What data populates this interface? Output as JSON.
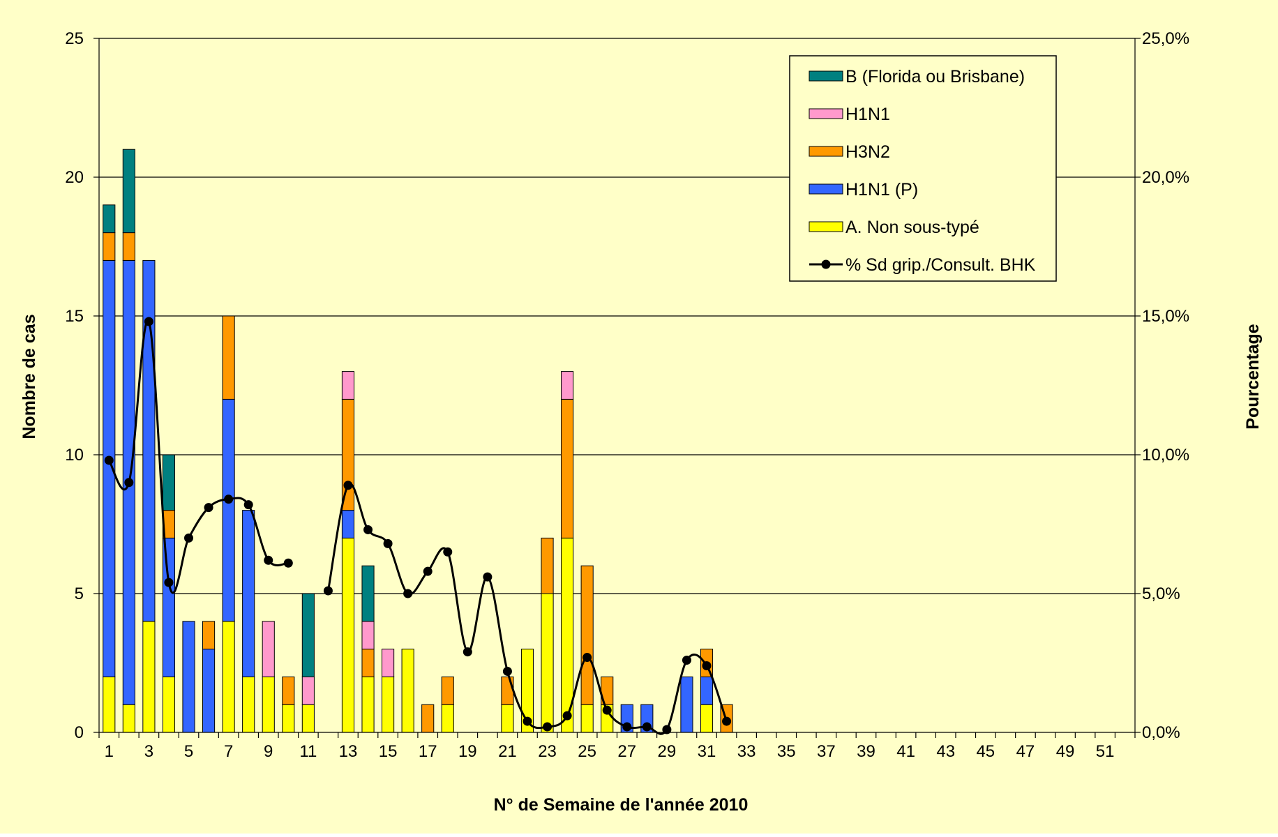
{
  "chart_data": {
    "type": "bar",
    "stacked": true,
    "title": "",
    "xlabel": "N° de Semaine de l'année 2010",
    "ylabel": "Nombre de cas",
    "y2label": "Pourcentage",
    "ylim": [
      0,
      25
    ],
    "y2lim": [
      0,
      25
    ],
    "yticks": [
      "0",
      "5",
      "10",
      "15",
      "20",
      "25"
    ],
    "y2ticks": [
      "0,0%",
      "5,0%",
      "10,0%",
      "15,0%",
      "20,0%",
      "25,0%"
    ],
    "grid": true,
    "legend_position": "top-right",
    "categories": [
      1,
      2,
      3,
      4,
      5,
      6,
      7,
      8,
      9,
      10,
      11,
      12,
      13,
      14,
      15,
      16,
      17,
      18,
      19,
      20,
      21,
      22,
      23,
      24,
      25,
      26,
      27,
      28,
      29,
      30,
      31,
      32,
      33,
      34,
      35,
      36,
      37,
      38,
      39,
      40,
      41,
      42,
      43,
      44,
      45,
      46,
      47,
      48,
      49,
      50,
      51,
      52
    ],
    "xtick_labels": [
      "1",
      "3",
      "5",
      "7",
      "9",
      "11",
      "13",
      "15",
      "17",
      "19",
      "21",
      "23",
      "25",
      "27",
      "29",
      "31",
      "33",
      "35",
      "37",
      "39",
      "41",
      "43",
      "45",
      "47",
      "49",
      "51"
    ],
    "series": [
      {
        "name": "A. Non sous-typé",
        "color": "#ffff00",
        "values": [
          2,
          1,
          4,
          2,
          0,
          0,
          4,
          2,
          2,
          1,
          1,
          0,
          7,
          2,
          2,
          3,
          0,
          1,
          0,
          0,
          1,
          3,
          5,
          7,
          1,
          1,
          0,
          0,
          0,
          0,
          1,
          0,
          0,
          0,
          0,
          0,
          0,
          0,
          0,
          0,
          0,
          0,
          0,
          0,
          0,
          0,
          0,
          0,
          0,
          0,
          0,
          0
        ]
      },
      {
        "name": "H1N1 (P)",
        "color": "#3366ff",
        "values": [
          15,
          16,
          13,
          5,
          4,
          3,
          8,
          6,
          0,
          0,
          0,
          0,
          1,
          0,
          0,
          0,
          0,
          0,
          0,
          0,
          0,
          0,
          0,
          0,
          0,
          0,
          1,
          1,
          0,
          2,
          1,
          0,
          0,
          0,
          0,
          0,
          0,
          0,
          0,
          0,
          0,
          0,
          0,
          0,
          0,
          0,
          0,
          0,
          0,
          0,
          0,
          0
        ]
      },
      {
        "name": "H3N2",
        "color": "#ff9900",
        "values": [
          1,
          1,
          0,
          1,
          0,
          1,
          3,
          0,
          0,
          1,
          0,
          0,
          4,
          1,
          0,
          0,
          1,
          1,
          0,
          0,
          1,
          0,
          2,
          5,
          5,
          1,
          0,
          0,
          0,
          0,
          1,
          1,
          0,
          0,
          0,
          0,
          0,
          0,
          0,
          0,
          0,
          0,
          0,
          0,
          0,
          0,
          0,
          0,
          0,
          0,
          0,
          0
        ]
      },
      {
        "name": "H1N1",
        "color": "#ff99cc",
        "values": [
          0,
          0,
          0,
          0,
          0,
          0,
          0,
          0,
          2,
          0,
          1,
          0,
          1,
          1,
          1,
          0,
          0,
          0,
          0,
          0,
          0,
          0,
          0,
          1,
          0,
          0,
          0,
          0,
          0,
          0,
          0,
          0,
          0,
          0,
          0,
          0,
          0,
          0,
          0,
          0,
          0,
          0,
          0,
          0,
          0,
          0,
          0,
          0,
          0,
          0,
          0,
          0
        ]
      },
      {
        "name": "B (Florida ou Brisbane)",
        "color": "#008080",
        "values": [
          1,
          3,
          0,
          2,
          0,
          0,
          0,
          0,
          0,
          0,
          3,
          0,
          0,
          2,
          0,
          0,
          0,
          0,
          0,
          0,
          0,
          0,
          0,
          0,
          0,
          0,
          0,
          0,
          0,
          0,
          0,
          0,
          0,
          0,
          0,
          0,
          0,
          0,
          0,
          0,
          0,
          0,
          0,
          0,
          0,
          0,
          0,
          0,
          0,
          0,
          0,
          0
        ]
      }
    ],
    "line_series": {
      "name": "% Sd grip./Consult. BHK",
      "color": "#000000",
      "axis": "right",
      "segments": [
        {
          "x": [
            1,
            2,
            3,
            4,
            5,
            6,
            7,
            8,
            9,
            10
          ],
          "y": [
            9.8,
            9.0,
            14.8,
            5.4,
            7.0,
            8.1,
            8.4,
            8.2,
            6.2,
            6.1
          ]
        },
        {
          "x": [
            12,
            13,
            14,
            15,
            16,
            17,
            18,
            19,
            20,
            21,
            22,
            23,
            24,
            25,
            26,
            27,
            28,
            29,
            30,
            31,
            32
          ],
          "y": [
            5.1,
            8.9,
            7.3,
            6.8,
            5.0,
            5.8,
            6.5,
            2.9,
            5.6,
            2.2,
            0.4,
            0.2,
            0.6,
            2.7,
            0.8,
            0.2,
            0.2,
            0.1,
            2.6,
            2.4,
            0.4
          ]
        }
      ]
    },
    "legend_order": [
      "B (Florida ou Brisbane)",
      "H1N1",
      "H3N2",
      "H1N1 (P)",
      "A. Non sous-typé",
      "% Sd grip./Consult. BHK"
    ]
  }
}
